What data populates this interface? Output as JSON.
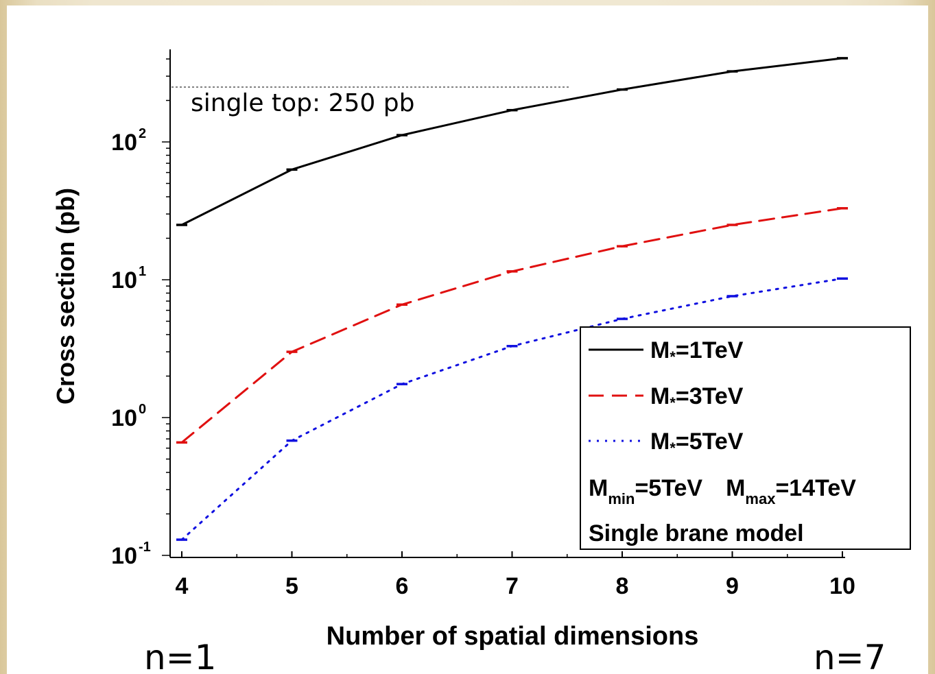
{
  "chart_data": {
    "type": "line",
    "xlabel": "Number of spatial dimensions",
    "ylabel": "Cross section (pb)",
    "yscale": "log",
    "xlim": [
      4,
      10
    ],
    "ylim": [
      0.1,
      450
    ],
    "x": [
      4,
      5,
      6,
      7,
      8,
      9,
      10
    ],
    "x_tick_labels": [
      "4",
      "5",
      "6",
      "7",
      "8",
      "9",
      "10"
    ],
    "y_tick_labels": [
      {
        "value": 0.1,
        "base": "10",
        "exp": "-1"
      },
      {
        "value": 1,
        "base": "10",
        "exp": "0"
      },
      {
        "value": 10,
        "base": "10",
        "exp": "1"
      },
      {
        "value": 100,
        "base": "10",
        "exp": "2"
      }
    ],
    "series": [
      {
        "name": "M*=1TeV",
        "color": "#000000",
        "dash": "solid",
        "values": [
          25,
          63,
          112,
          170,
          240,
          325,
          405
        ]
      },
      {
        "name": "M*=3TeV",
        "color": "#e01010",
        "dash": "dashed",
        "values": [
          0.66,
          3.0,
          6.6,
          11.5,
          17.5,
          25,
          33
        ]
      },
      {
        "name": "M*=5TeV",
        "color": "#1010e0",
        "dash": "dotted",
        "values": [
          0.13,
          0.68,
          1.75,
          3.3,
          5.2,
          7.6,
          10.2
        ]
      }
    ],
    "legend": {
      "placement": "bottom-right",
      "entries": [
        {
          "prefix": "M",
          "sub": "*",
          "rest": "=1TeV"
        },
        {
          "prefix": "M",
          "sub": "*",
          "rest": "=3TeV"
        },
        {
          "prefix": "M",
          "sub": "*",
          "rest": "=5TeV"
        }
      ],
      "mass_range": {
        "m": "M",
        "min_sub": "min",
        "min_val": "=5TeV",
        "max_sub": "max",
        "max_val": "=14TeV"
      },
      "model": "Single brane model"
    },
    "reference_line": {
      "value": 250,
      "label": "single top: 250 pb",
      "style": "dotted"
    },
    "grid": false
  },
  "annotations": {
    "left": "n=1",
    "right": "n=7"
  }
}
